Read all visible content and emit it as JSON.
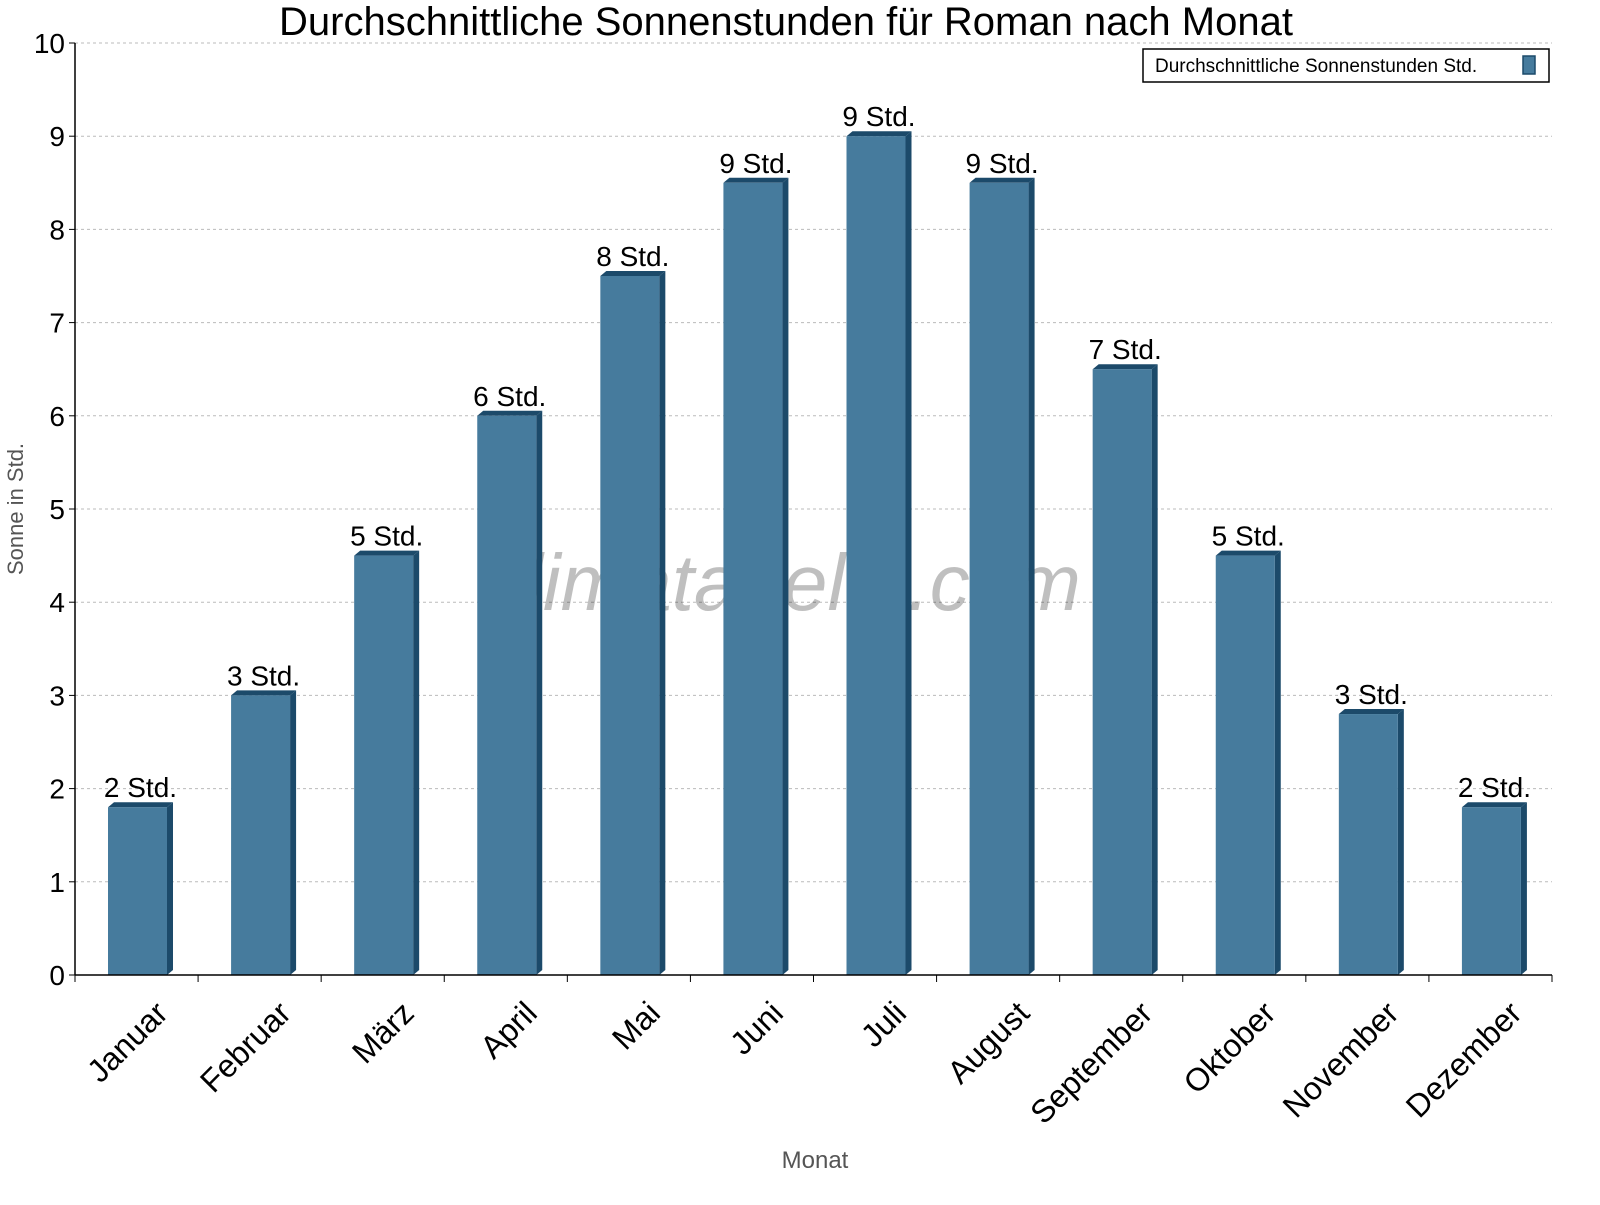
{
  "chart_data": {
    "type": "bar",
    "title": "Durchschnittliche Sonnenstunden für Roman nach Monat",
    "xlabel": "Monat",
    "ylabel": "Sonne in Std.",
    "ylim": [
      0,
      10
    ],
    "yticks": [
      0,
      1,
      2,
      3,
      4,
      5,
      6,
      7,
      8,
      9,
      10
    ],
    "grid": true,
    "legend_position": "top-right",
    "categories": [
      "Januar",
      "Februar",
      "März",
      "April",
      "Mai",
      "Juni",
      "Juli",
      "August",
      "September",
      "Oktober",
      "November",
      "Dezember"
    ],
    "series": [
      {
        "name": "Durchschnittliche Sonnenstunden Std.",
        "values": [
          1.8,
          3.0,
          4.5,
          6.0,
          7.5,
          8.5,
          9.0,
          8.5,
          6.5,
          4.5,
          2.8,
          1.8
        ],
        "labels": [
          "2 Std.",
          "3 Std.",
          "5 Std.",
          "6 Std.",
          "8 Std.",
          "9 Std.",
          "9 Std.",
          "9 Std.",
          "7 Std.",
          "5 Std.",
          "3 Std.",
          "2 Std."
        ],
        "color": "#467b9d",
        "side_color": "#1c4a6a"
      }
    ],
    "watermark": "klimatabelle.com"
  }
}
